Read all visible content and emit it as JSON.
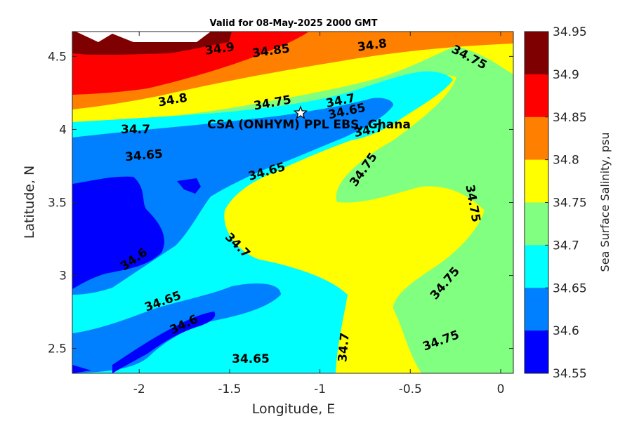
{
  "title": "Valid for 08-May-2025 2000 GMT",
  "site_label": "CSA (ONHYM) PPL EBS, Ghana",
  "axes": {
    "xlabel": "Longitude, E",
    "ylabel": "Latitude, N",
    "x_ticks": [
      "-2",
      "-1.5",
      "-1",
      "-0.5",
      "0"
    ],
    "y_ticks": [
      "4.5",
      "4",
      "3.5",
      "3",
      "2.5"
    ],
    "xlim": [
      -2.37,
      0.07
    ],
    "ylim": [
      2.33,
      4.67
    ]
  },
  "colorbar": {
    "label": "Sea Surface Salinity, psu",
    "ticks": [
      "34.95",
      "34.9",
      "34.85",
      "34.8",
      "34.75",
      "34.7",
      "34.65",
      "34.6",
      "34.55"
    ],
    "colors": [
      "#7f0000",
      "#ff0000",
      "#ff8000",
      "#ffff00",
      "#80ff80",
      "#00ffff",
      "#0080ff",
      "#0000ff"
    ]
  },
  "contour_labels": [
    "34.9",
    "34.85",
    "34.8",
    "34.75",
    "34.8",
    "34.75",
    "34.7",
    "34.65",
    "34.7",
    "34.7",
    "34.65",
    "34.65",
    "34.75",
    "34.75",
    "34.7",
    "34.6",
    "34.65",
    "34.6",
    "34.75",
    "34.7",
    "34.65",
    "34.75"
  ],
  "colors": {
    "dark_red": "#7f0000",
    "red": "#ff0000",
    "orange": "#ff8000",
    "yellow": "#ffff00",
    "light_green": "#80ff80",
    "cyan": "#00ffff",
    "mid_blue": "#0080ff",
    "blue": "#0000ff"
  }
}
